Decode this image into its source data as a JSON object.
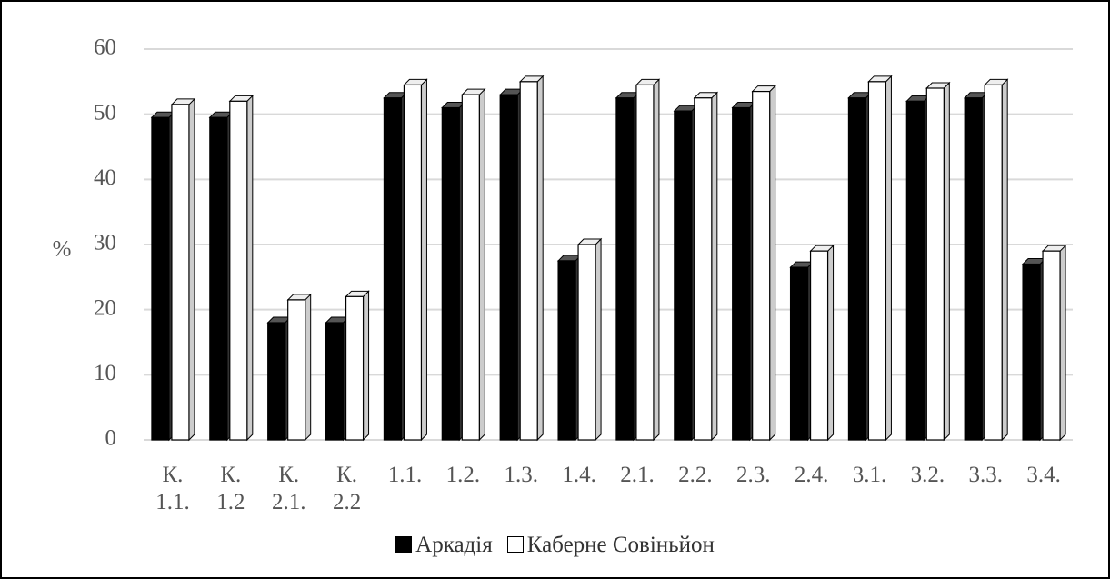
{
  "chart_data": {
    "type": "bar3d",
    "y_label": "%",
    "categories": [
      "К. 1.1.",
      "К. 1.2",
      "К. 2.1.",
      "К. 2.2",
      "1.1.",
      "1.2.",
      "1.3.",
      "1.4.",
      "2.1.",
      "2.2.",
      "2.3.",
      "2.4.",
      "3.1.",
      "3.2.",
      "3.3.",
      "3.4."
    ],
    "series": [
      {
        "name": "Аркадія",
        "color": "#000000",
        "values": [
          49.5,
          49.5,
          18,
          18,
          52.5,
          51,
          53,
          27.5,
          52.5,
          50.5,
          51,
          26.5,
          52.5,
          52,
          52.5,
          27
        ]
      },
      {
        "name": "Каберне Совіньйон",
        "color": "#ffffff",
        "values": [
          51.5,
          52,
          21.5,
          22,
          54.5,
          53,
          55,
          30,
          54.5,
          52.5,
          53.5,
          29,
          55,
          54,
          54.5,
          29
        ]
      }
    ],
    "ylim": [
      0,
      60
    ],
    "yticks": [
      0,
      10,
      20,
      30,
      40,
      50,
      60
    ],
    "grid": true,
    "legend": "bottom"
  }
}
